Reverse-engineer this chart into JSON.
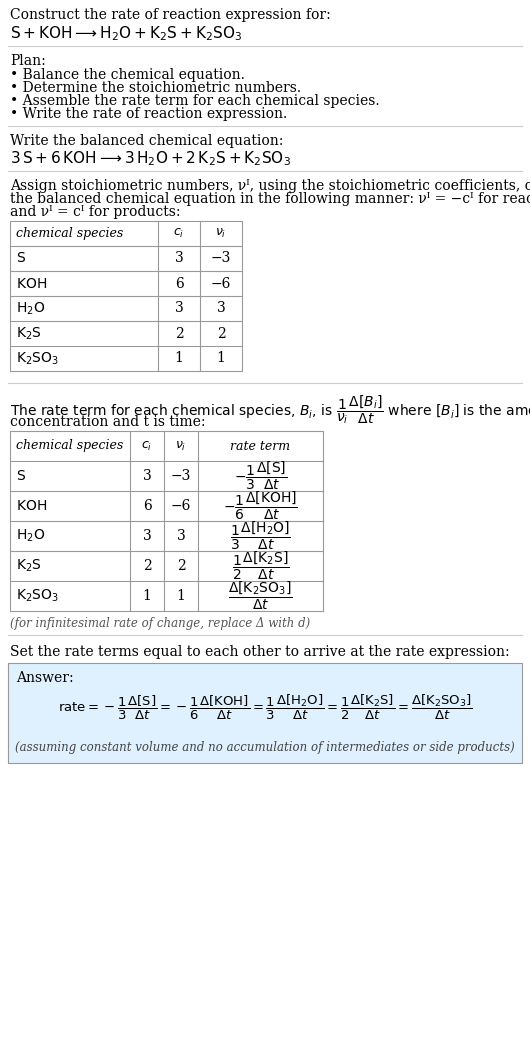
{
  "title_line1": "Construct the rate of reaction expression for:",
  "plan_header": "Plan:",
  "plan_items": [
    "• Balance the chemical equation.",
    "• Determine the stoichiometric numbers.",
    "• Assemble the rate term for each chemical species.",
    "• Write the rate of reaction expression."
  ],
  "balanced_header": "Write the balanced chemical equation:",
  "assign_text1": "Assign stoichiometric numbers, νᴵ, using the stoichiometric coefficients, cᴵ, from",
  "assign_text2": "the balanced chemical equation in the following manner: νᴵ = −cᴵ for reactants",
  "assign_text3": "and νᴵ = cᴵ for products:",
  "table1_species": [
    "S",
    "KOH",
    "H₂O",
    "K₂S",
    "K₂SO₃"
  ],
  "table1_ci": [
    "3",
    "6",
    "3",
    "2",
    "1"
  ],
  "table1_vi": [
    "−3",
    "−6",
    "3",
    "2",
    "1"
  ],
  "table2_species": [
    "S",
    "KOH",
    "H₂O",
    "K₂S",
    "K₂SO₃"
  ],
  "table2_ci": [
    "3",
    "6",
    "3",
    "2",
    "1"
  ],
  "table2_vi": [
    "−3",
    "−6",
    "3",
    "2",
    "1"
  ],
  "infinitesimal_note": "(for infinitesimal rate of change, replace Δ with d)",
  "set_equal_text": "Set the rate terms equal to each other to arrive at the rate expression:",
  "answer_label": "Answer:",
  "answer_box_color": "#dff0ff",
  "assuming_note": "(assuming constant volume and no accumulation of intermediates or side products)",
  "bg_color": "#ffffff",
  "text_color": "#000000",
  "table_border_color": "#999999",
  "divider_color": "#cccccc"
}
